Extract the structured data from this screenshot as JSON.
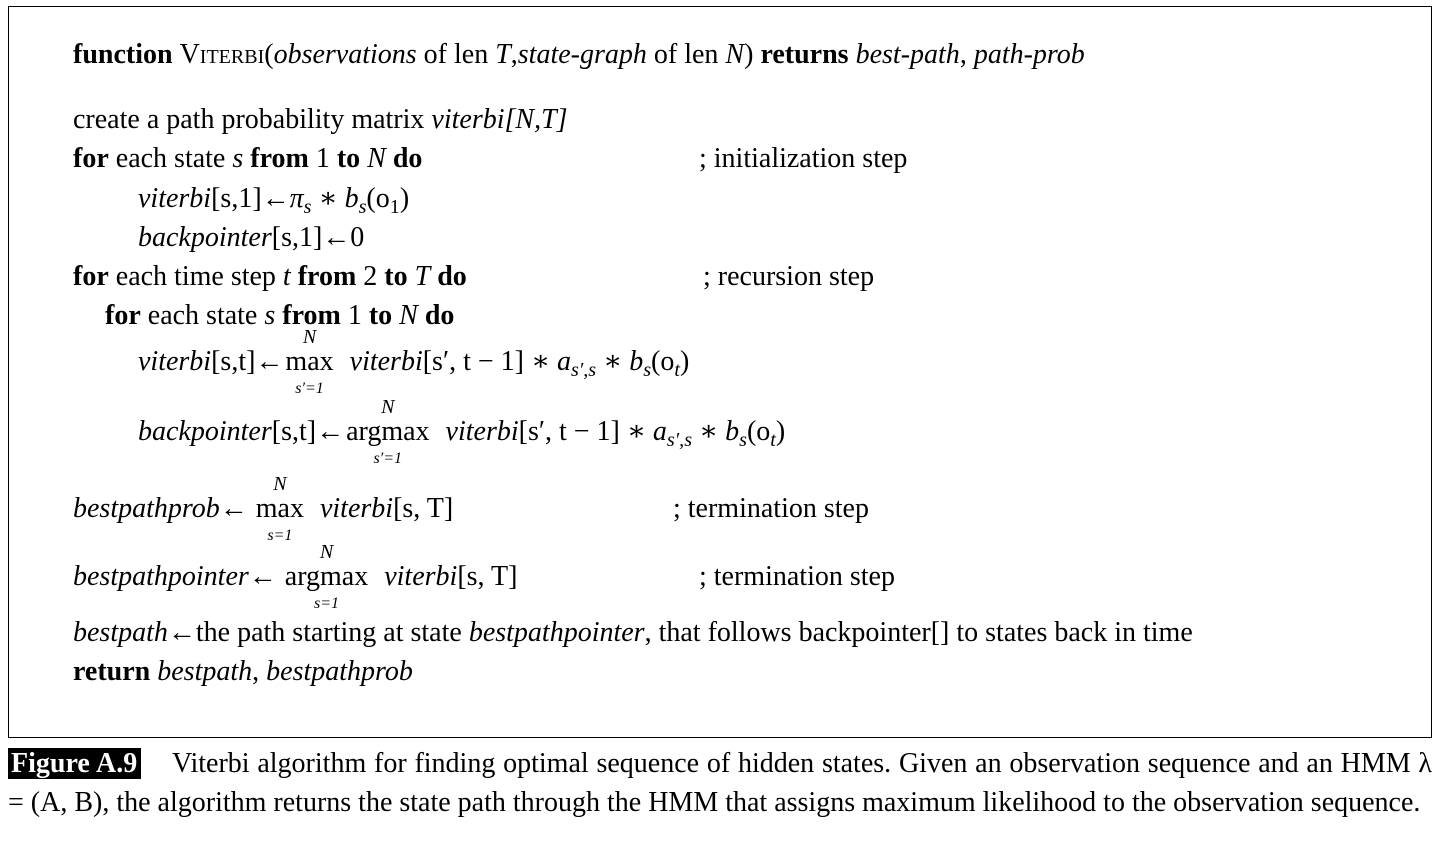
{
  "signature": {
    "kw_function": "function",
    "name": "Viterbi",
    "open": "(",
    "obs": "observations",
    "len1": " of len ",
    "T": "T",
    "comma1": ",",
    "graph": "state-graph",
    "len2": " of len ",
    "N": "N",
    "close": ")",
    "kw_returns": " returns ",
    "best_path": "best-path",
    "comma2": ", ",
    "path_prob": "path-prob"
  },
  "create_line": {
    "text": "create a path probability matrix ",
    "matrix": "viterbi[N,T]"
  },
  "loop1": {
    "kw_for": "for",
    "each": " each state ",
    "s": "s",
    "kw_from": " from ",
    "one": "1",
    "kw_to": " to ",
    "N": "N",
    "kw_do": " do",
    "comment": "; initialization step"
  },
  "init1": {
    "lhs": "viterbi",
    "idx": "[s,1]",
    "arrow": "←",
    "pi": "π",
    "pi_sub": "s",
    "star": " ∗ ",
    "b": "b",
    "b_sub": "s",
    "arg": "(o",
    "arg_sub": "1",
    "arg_close": ")"
  },
  "init2": {
    "lhs": "backpointer",
    "idx": "[s,1]",
    "arrow": "←",
    "val": "0"
  },
  "loop2": {
    "kw_for": "for",
    "each": " each time step ",
    "t": "t",
    "kw_from": " from ",
    "two": "2",
    "kw_to": " to ",
    "T": "T",
    "kw_do": " do",
    "comment": "; recursion step"
  },
  "loop3": {
    "kw_for": "for",
    "each": " each state ",
    "s": "s",
    "kw_from": " from ",
    "one": "1",
    "kw_to": " to ",
    "N": "N",
    "kw_do": " do"
  },
  "rec1": {
    "lhs": "viterbi",
    "idx": "[s,t]",
    "arrow": "←",
    "op": "max",
    "op_up": "N",
    "op_dn": "s′=1",
    "term": "viterbi",
    "term_idx": "[s′, t − 1]",
    "star1": " ∗ ",
    "a": "a",
    "a_sub": "s′,s",
    "star2": " ∗ ",
    "b": "b",
    "b_sub": "s",
    "arg": "(o",
    "arg_sub": "t",
    "arg_close": ")"
  },
  "rec2": {
    "lhs": "backpointer",
    "idx": "[s,t]",
    "arrow": "←",
    "op": "argmax",
    "op_up": "N",
    "op_dn": "s′=1",
    "term": "viterbi",
    "term_idx": "[s′, t − 1]",
    "star1": " ∗ ",
    "a": "a",
    "a_sub": "s′,s",
    "star2": " ∗ ",
    "b": "b",
    "b_sub": "s",
    "arg": "(o",
    "arg_sub": "t",
    "arg_close": ")"
  },
  "term1": {
    "lhs": "bestpathprob",
    "arrow": "←",
    "op": "max",
    "op_up": "N",
    "op_dn": "s=1",
    "term": "viterbi",
    "term_idx": "[s, T]",
    "comment": "; termination step"
  },
  "term2": {
    "lhs": "bestpathpointer",
    "arrow": "←",
    "op": "argmax",
    "op_up": "N",
    "op_dn": "s=1",
    "term": "viterbi",
    "term_idx": "[s, T]",
    "comment": "; termination step"
  },
  "bestpath_line": {
    "lhs": "bestpath",
    "arrow": "←",
    "t1": "the path starting at state ",
    "ptr": "bestpathpointer",
    "t2": ", that follows backpointer[] to states back in time"
  },
  "return_line": {
    "kw": "return",
    "v1": "bestpath",
    "comma": ", ",
    "v2": "bestpathprob"
  },
  "caption": {
    "label": "Figure A.9",
    "text": "Viterbi algorithm for finding optimal sequence of hidden states. Given an observation sequence and an HMM λ = (A, B), the algorithm returns the state path through the HMM that assigns maximum likelihood to the observation sequence."
  }
}
